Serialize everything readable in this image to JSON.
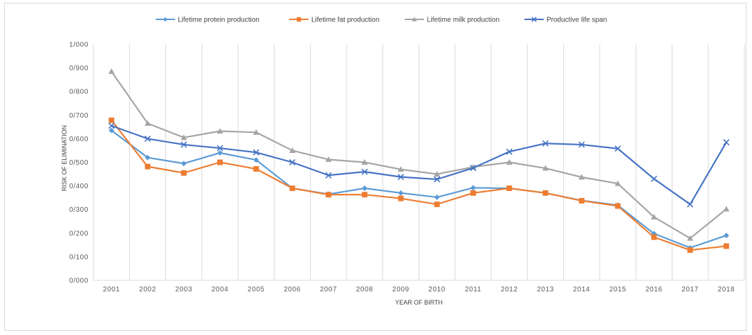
{
  "chart_data": {
    "type": "line",
    "title": "",
    "xlabel": "YEAR OF BIRTH",
    "ylabel": "RISK OF ELIMINATION",
    "ylim": [
      0,
      1
    ],
    "grid": "vertical",
    "legend_position": "top",
    "x": [
      "2001",
      "2002",
      "2003",
      "2004",
      "2005",
      "2006",
      "2007",
      "2008",
      "2009",
      "2010",
      "2011",
      "2012",
      "2013",
      "2014",
      "2015",
      "2016",
      "2017",
      "2018"
    ],
    "y_ticks": [
      "0/000",
      "0/100",
      "0/200",
      "0/300",
      "0/400",
      "0/500",
      "0/600",
      "0/700",
      "0/800",
      "0/900",
      "1/000"
    ],
    "series": [
      {
        "name": "Lifetime protein production",
        "color": "#5b9bd5",
        "marker": "diamond",
        "values": [
          0.635,
          0.52,
          0.495,
          0.54,
          0.51,
          0.39,
          0.365,
          0.39,
          0.37,
          0.352,
          0.392,
          0.39,
          0.37,
          0.338,
          0.318,
          0.198,
          0.138,
          0.19
        ]
      },
      {
        "name": "Lifetime fat production",
        "color": "#ed7d31",
        "marker": "square",
        "values": [
          0.678,
          0.482,
          0.455,
          0.5,
          0.472,
          0.39,
          0.363,
          0.363,
          0.347,
          0.322,
          0.37,
          0.39,
          0.37,
          0.337,
          0.315,
          0.183,
          0.128,
          0.145
        ]
      },
      {
        "name": "Lifetime milk production",
        "color": "#a5a5a5",
        "marker": "triangle",
        "values": [
          0.885,
          0.665,
          0.605,
          0.632,
          0.627,
          0.55,
          0.512,
          0.5,
          0.47,
          0.45,
          0.48,
          0.5,
          0.475,
          0.437,
          0.41,
          0.268,
          0.178,
          0.302
        ]
      },
      {
        "name": "Productive life span",
        "color": "#4472c4",
        "marker": "x",
        "values": [
          0.655,
          0.6,
          0.575,
          0.56,
          0.542,
          0.5,
          0.445,
          0.46,
          0.438,
          0.428,
          0.476,
          0.545,
          0.58,
          0.575,
          0.558,
          0.43,
          0.322,
          0.585
        ]
      }
    ]
  }
}
